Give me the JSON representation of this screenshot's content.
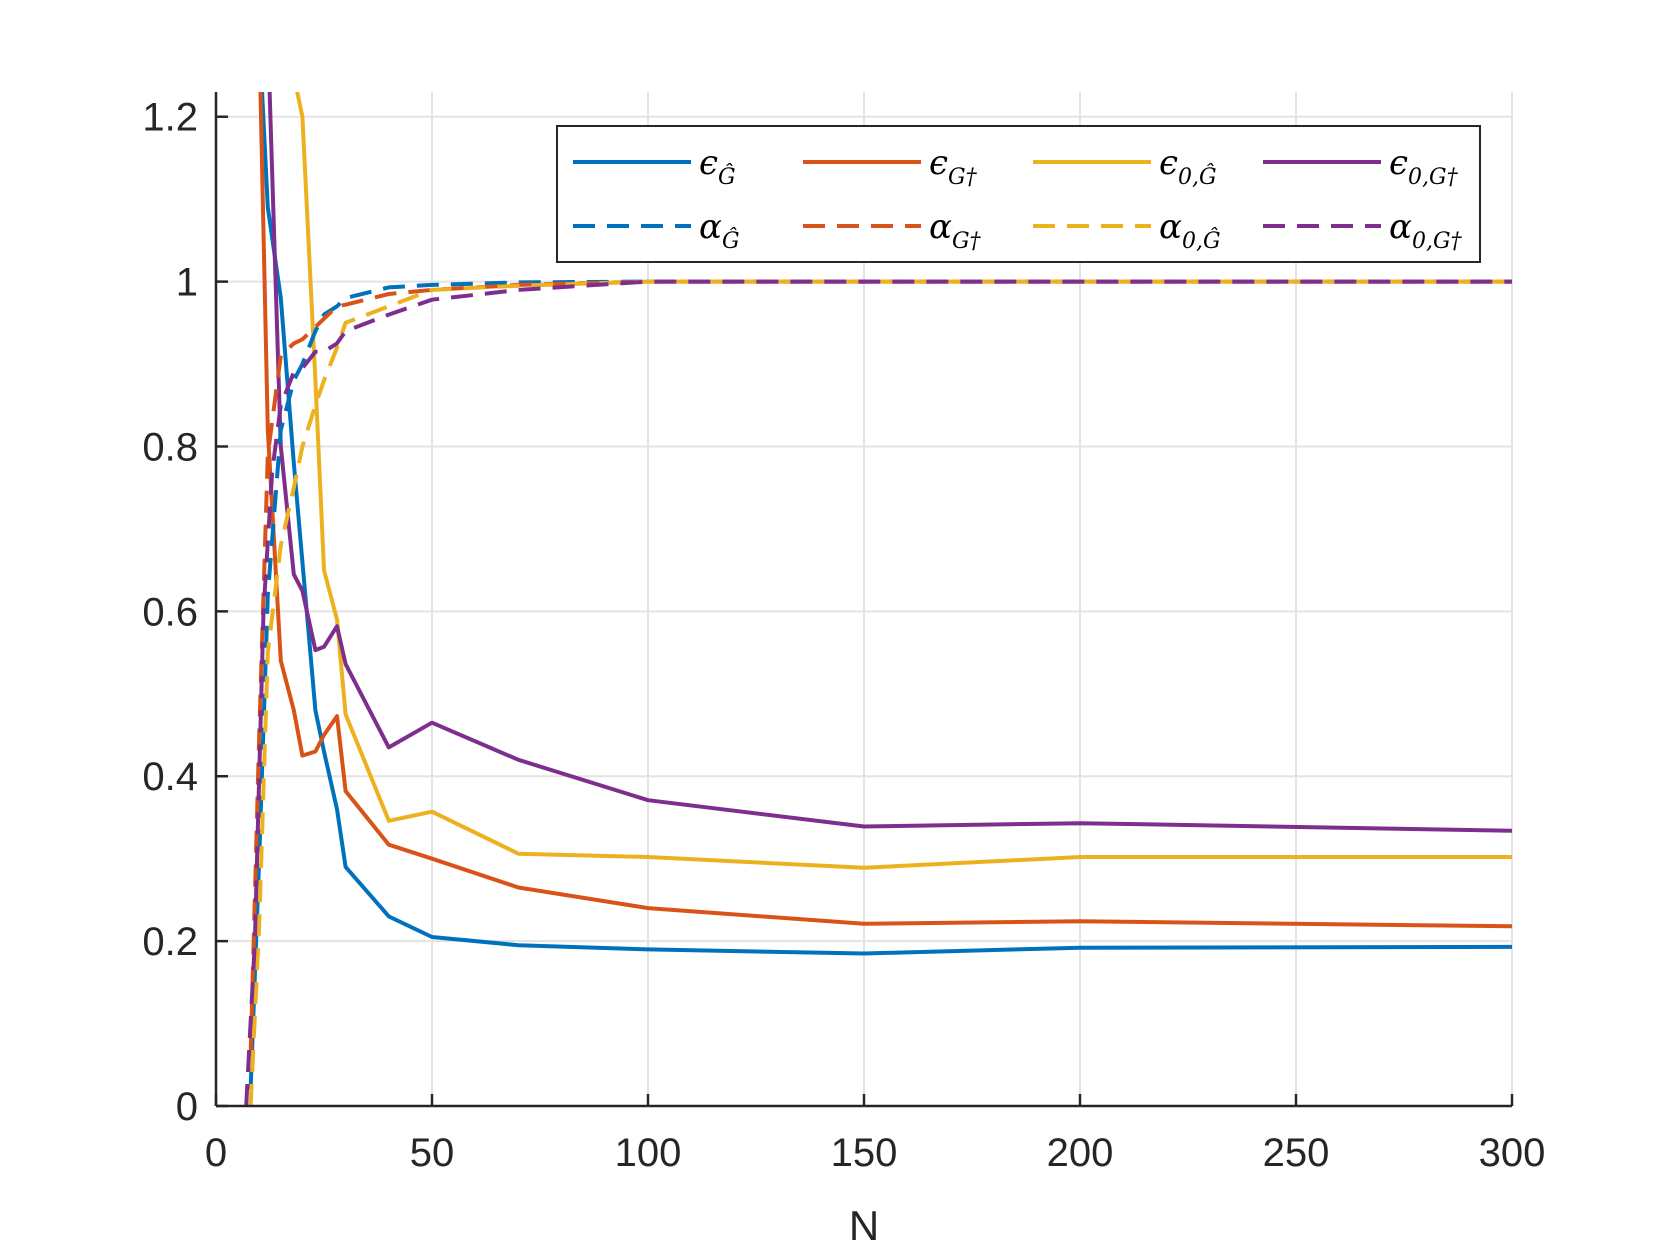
{
  "chart_data": {
    "type": "line",
    "title": "",
    "xlabel": "N",
    "ylabel": "",
    "xlim": [
      0,
      300
    ],
    "ylim": [
      0,
      1.23
    ],
    "grid": true,
    "legend_position": "top-right",
    "legend_columns": 4,
    "x_ticks": [
      "0",
      "50",
      "100",
      "150",
      "200",
      "250",
      "300"
    ],
    "x_tick_values": [
      0,
      50,
      100,
      150,
      200,
      250,
      300
    ],
    "y_ticks": [
      "0",
      "0.2",
      "0.4",
      "0.6",
      "0.8",
      "1",
      "1.2"
    ],
    "y_tick_values": [
      0,
      0.2,
      0.4,
      0.6,
      0.8,
      1.0,
      1.2
    ],
    "series": [
      {
        "key": "eps_ghat",
        "name": "ε_Ĝ",
        "sym": "ϵ",
        "sub": "Ĝ",
        "color": "#0072BD",
        "style": "solid",
        "x": [
          10,
          12,
          15,
          18,
          20,
          23,
          25,
          28,
          30,
          40,
          50,
          70,
          100,
          150,
          200,
          300
        ],
        "y": [
          1.3,
          1.09,
          0.98,
          0.78,
          0.66,
          0.48,
          0.43,
          0.36,
          0.29,
          0.23,
          0.205,
          0.195,
          0.19,
          0.185,
          0.192,
          0.193
        ]
      },
      {
        "key": "eps_gdag",
        "name": "ε_G†",
        "sym": "ϵ",
        "sub": "G†",
        "color": "#D95319",
        "style": "solid",
        "x": [
          10,
          12,
          15,
          18,
          20,
          23,
          25,
          28,
          30,
          40,
          50,
          70,
          100,
          150,
          200,
          300
        ],
        "y": [
          1.3,
          0.82,
          0.54,
          0.48,
          0.425,
          0.43,
          0.45,
          0.473,
          0.382,
          0.317,
          0.3,
          0.265,
          0.24,
          0.221,
          0.224,
          0.218
        ]
      },
      {
        "key": "eps_0_ghat",
        "name": "ε_0,Ĝ",
        "sym": "ϵ",
        "sub": "0,Ĝ",
        "color": "#EDB120",
        "style": "solid",
        "x": [
          18,
          20,
          23,
          25,
          28,
          30,
          40,
          50,
          70,
          100,
          150,
          200,
          300
        ],
        "y": [
          1.25,
          1.2,
          0.88,
          0.65,
          0.59,
          0.475,
          0.346,
          0.357,
          0.306,
          0.302,
          0.289,
          0.302,
          0.302
        ]
      },
      {
        "key": "eps_0_gdag",
        "name": "ε_0,G†",
        "sym": "ϵ",
        "sub": "0,G†",
        "color": "#7E2F8E",
        "style": "solid",
        "x": [
          12,
          15,
          18,
          20,
          23,
          25,
          28,
          30,
          40,
          50,
          70,
          100,
          150,
          200,
          300
        ],
        "y": [
          1.3,
          0.8,
          0.645,
          0.625,
          0.553,
          0.557,
          0.582,
          0.536,
          0.435,
          0.465,
          0.42,
          0.371,
          0.339,
          0.343,
          0.334
        ]
      },
      {
        "key": "alpha_ghat",
        "name": "α_Ĝ",
        "sym": "α",
        "sub": "Ĝ",
        "color": "#0072BD",
        "style": "dashed",
        "x": [
          8,
          10,
          12,
          15,
          18,
          20,
          23,
          25,
          28,
          30,
          40,
          50,
          70,
          100,
          150,
          200,
          300
        ],
        "y": [
          0.02,
          0.3,
          0.62,
          0.82,
          0.88,
          0.9,
          0.94,
          0.96,
          0.97,
          0.98,
          0.993,
          0.996,
          0.999,
          1.0,
          1.0,
          1.0,
          1.0
        ]
      },
      {
        "key": "alpha_gdag",
        "name": "α_G†",
        "sym": "α",
        "sub": "G†",
        "color": "#D95319",
        "style": "dashed",
        "x": [
          8,
          10,
          12,
          15,
          18,
          20,
          23,
          25,
          28,
          30,
          40,
          50,
          70,
          100,
          150,
          200,
          300
        ],
        "y": [
          0.06,
          0.45,
          0.79,
          0.91,
          0.925,
          0.93,
          0.945,
          0.955,
          0.97,
          0.972,
          0.985,
          0.99,
          0.996,
          1.0,
          1.0,
          1.0,
          1.0
        ]
      },
      {
        "key": "alpha_0_ghat",
        "name": "α_0,Ĝ",
        "sym": "α",
        "sub": "0,Ĝ",
        "color": "#EDB120",
        "style": "dashed",
        "x": [
          8,
          10,
          12,
          15,
          18,
          20,
          23,
          25,
          28,
          30,
          40,
          50,
          70,
          100,
          150,
          200,
          300
        ],
        "y": [
          0.0,
          0.22,
          0.55,
          0.68,
          0.75,
          0.8,
          0.85,
          0.88,
          0.92,
          0.95,
          0.97,
          0.99,
          0.995,
          1.0,
          1.0,
          1.0,
          1.0
        ]
      },
      {
        "key": "alpha_0_gdag",
        "name": "α_0,G†",
        "sym": "α",
        "sub": "0,G†",
        "color": "#7E2F8E",
        "style": "dashed",
        "x": [
          7,
          9,
          11,
          13,
          15,
          18,
          20,
          23,
          25,
          28,
          30,
          40,
          50,
          70,
          100,
          150,
          200,
          300
        ],
        "y": [
          0.0,
          0.2,
          0.6,
          0.77,
          0.85,
          0.89,
          0.895,
          0.915,
          0.915,
          0.925,
          0.94,
          0.96,
          0.978,
          0.99,
          1.0,
          1.0,
          1.0,
          1.0
        ]
      }
    ]
  }
}
